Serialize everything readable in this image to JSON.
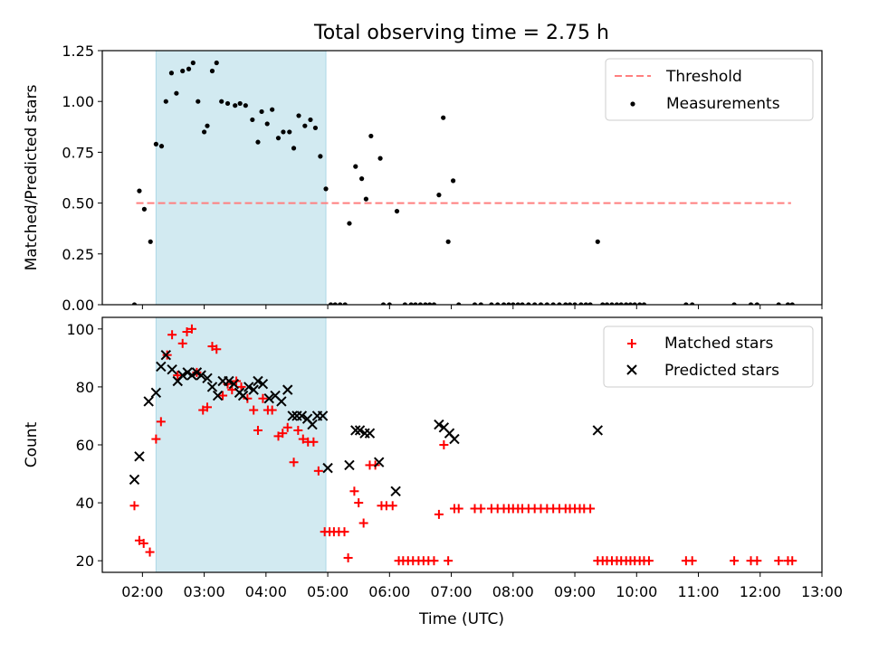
{
  "title": "Total observing time = 2.75 h",
  "xlabel": "Time (UTC)",
  "xticks": [
    "02:00",
    "03:00",
    "04:00",
    "05:00",
    "06:00",
    "07:00",
    "08:00",
    "09:00",
    "10:00",
    "11:00",
    "12:00",
    "13:00"
  ],
  "colors": {
    "threshold": "#ff7f7f",
    "measurements": "#000000",
    "matched": "#ff0000",
    "predicted": "#000000",
    "shade": "#add8e6"
  },
  "chart_data": [
    {
      "type": "scatter",
      "ylabel": "Matched/Predicted stars",
      "xlim": [
        1.35,
        13.0
      ],
      "ylim": [
        0,
        1.25
      ],
      "yticks": [
        "0.00",
        "0.25",
        "0.50",
        "0.75",
        "1.00",
        "1.25"
      ],
      "yticks_values": [
        0,
        0.25,
        0.5,
        0.75,
        1.0,
        1.25
      ],
      "shaded_interval": [
        2.22,
        4.97
      ],
      "legend": {
        "position": "top-right",
        "threshold_label": "Threshold",
        "measurements_label": "Measurements"
      },
      "threshold": {
        "y": 0.5,
        "x": [
          1.9,
          12.5
        ]
      },
      "series": [
        {
          "name": "Measurements",
          "points": [
            [
              1.87,
              0.0
            ],
            [
              1.95,
              0.56
            ],
            [
              2.03,
              0.47
            ],
            [
              2.13,
              0.31
            ],
            [
              2.22,
              0.79
            ],
            [
              2.31,
              0.78
            ],
            [
              2.38,
              1.0
            ],
            [
              2.47,
              1.14
            ],
            [
              2.55,
              1.04
            ],
            [
              2.65,
              1.15
            ],
            [
              2.75,
              1.16
            ],
            [
              2.82,
              1.19
            ],
            [
              2.9,
              1.0
            ],
            [
              3.0,
              0.85
            ],
            [
              3.05,
              0.88
            ],
            [
              3.13,
              1.15
            ],
            [
              3.2,
              1.19
            ],
            [
              3.28,
              1.0
            ],
            [
              3.38,
              0.99
            ],
            [
              3.5,
              0.98
            ],
            [
              3.58,
              0.99
            ],
            [
              3.67,
              0.98
            ],
            [
              3.78,
              0.91
            ],
            [
              3.87,
              0.8
            ],
            [
              3.93,
              0.95
            ],
            [
              4.02,
              0.89
            ],
            [
              4.1,
              0.96
            ],
            [
              4.2,
              0.82
            ],
            [
              4.28,
              0.85
            ],
            [
              4.38,
              0.85
            ],
            [
              4.45,
              0.77
            ],
            [
              4.53,
              0.93
            ],
            [
              4.63,
              0.88
            ],
            [
              4.72,
              0.91
            ],
            [
              4.8,
              0.87
            ],
            [
              4.88,
              0.73
            ],
            [
              4.97,
              0.57
            ],
            [
              5.05,
              0.0
            ],
            [
              5.12,
              0.0
            ],
            [
              5.2,
              0.0
            ],
            [
              5.28,
              0.0
            ],
            [
              5.35,
              0.4
            ],
            [
              5.45,
              0.68
            ],
            [
              5.55,
              0.62
            ],
            [
              5.62,
              0.52
            ],
            [
              5.7,
              0.83
            ],
            [
              5.85,
              0.72
            ],
            [
              5.9,
              0.0
            ],
            [
              6.0,
              0.0
            ],
            [
              6.12,
              0.46
            ],
            [
              6.25,
              0.0
            ],
            [
              6.35,
              0.0
            ],
            [
              6.42,
              0.0
            ],
            [
              6.5,
              0.0
            ],
            [
              6.58,
              0.0
            ],
            [
              6.65,
              0.0
            ],
            [
              6.72,
              0.0
            ],
            [
              6.8,
              0.54
            ],
            [
              6.87,
              0.92
            ],
            [
              6.95,
              0.31
            ],
            [
              7.03,
              0.61
            ],
            [
              7.12,
              0.0
            ],
            [
              7.38,
              0.0
            ],
            [
              7.48,
              0.0
            ],
            [
              7.65,
              0.0
            ],
            [
              7.75,
              0.0
            ],
            [
              7.85,
              0.0
            ],
            [
              7.93,
              0.0
            ],
            [
              8.0,
              0.0
            ],
            [
              8.08,
              0.0
            ],
            [
              8.15,
              0.0
            ],
            [
              8.25,
              0.0
            ],
            [
              8.35,
              0.0
            ],
            [
              8.45,
              0.0
            ],
            [
              8.55,
              0.0
            ],
            [
              8.65,
              0.0
            ],
            [
              8.75,
              0.0
            ],
            [
              8.85,
              0.0
            ],
            [
              8.92,
              0.0
            ],
            [
              9.0,
              0.0
            ],
            [
              9.1,
              0.0
            ],
            [
              9.18,
              0.0
            ],
            [
              9.25,
              0.0
            ],
            [
              9.37,
              0.31
            ],
            [
              9.45,
              0.0
            ],
            [
              9.52,
              0.0
            ],
            [
              9.6,
              0.0
            ],
            [
              9.68,
              0.0
            ],
            [
              9.75,
              0.0
            ],
            [
              9.83,
              0.0
            ],
            [
              9.9,
              0.0
            ],
            [
              9.97,
              0.0
            ],
            [
              10.05,
              0.0
            ],
            [
              10.12,
              0.0
            ],
            [
              10.8,
              0.0
            ],
            [
              10.9,
              0.0
            ],
            [
              11.58,
              0.0
            ],
            [
              11.85,
              0.0
            ],
            [
              11.95,
              0.0
            ],
            [
              12.3,
              0.0
            ],
            [
              12.45,
              0.0
            ],
            [
              12.52,
              0.0
            ]
          ]
        }
      ]
    },
    {
      "type": "scatter",
      "ylabel": "Count",
      "xlim": [
        1.35,
        13.0
      ],
      "ylim": [
        16,
        104
      ],
      "yticks": [
        "20",
        "40",
        "60",
        "80",
        "100"
      ],
      "yticks_values": [
        20,
        40,
        60,
        80,
        100
      ],
      "shaded_interval": [
        2.22,
        4.97
      ],
      "legend": {
        "position": "top-right",
        "matched_label": "Matched stars",
        "predicted_label": "Predicted stars"
      },
      "series": [
        {
          "name": "Matched stars",
          "marker": "plus",
          "points": [
            [
              1.87,
              39
            ],
            [
              1.95,
              27
            ],
            [
              2.02,
              26
            ],
            [
              2.12,
              23
            ],
            [
              2.22,
              62
            ],
            [
              2.3,
              68
            ],
            [
              2.4,
              91
            ],
            [
              2.48,
              98
            ],
            [
              2.57,
              84
            ],
            [
              2.65,
              95
            ],
            [
              2.72,
              99
            ],
            [
              2.8,
              100
            ],
            [
              2.88,
              85
            ],
            [
              2.98,
              72
            ],
            [
              3.05,
              73
            ],
            [
              3.13,
              94
            ],
            [
              3.2,
              93
            ],
            [
              3.3,
              77
            ],
            [
              3.38,
              81
            ],
            [
              3.45,
              79
            ],
            [
              3.52,
              82
            ],
            [
              3.6,
              80
            ],
            [
              3.7,
              76
            ],
            [
              3.8,
              72
            ],
            [
              3.87,
              65
            ],
            [
              3.95,
              76
            ],
            [
              4.03,
              72
            ],
            [
              4.1,
              72
            ],
            [
              4.2,
              63
            ],
            [
              4.27,
              64
            ],
            [
              4.35,
              66
            ],
            [
              4.45,
              54
            ],
            [
              4.52,
              65
            ],
            [
              4.6,
              62
            ],
            [
              4.68,
              61
            ],
            [
              4.77,
              61
            ],
            [
              4.85,
              51
            ],
            [
              4.95,
              30
            ],
            [
              5.03,
              30
            ],
            [
              5.1,
              30
            ],
            [
              5.18,
              30
            ],
            [
              5.27,
              30
            ],
            [
              5.33,
              21
            ],
            [
              5.43,
              44
            ],
            [
              5.5,
              40
            ],
            [
              5.58,
              33
            ],
            [
              5.68,
              53
            ],
            [
              5.77,
              53
            ],
            [
              5.87,
              39
            ],
            [
              5.95,
              39
            ],
            [
              6.05,
              39
            ],
            [
              6.15,
              20
            ],
            [
              6.22,
              20
            ],
            [
              6.3,
              20
            ],
            [
              6.38,
              20
            ],
            [
              6.47,
              20
            ],
            [
              6.55,
              20
            ],
            [
              6.63,
              20
            ],
            [
              6.72,
              20
            ],
            [
              6.8,
              36
            ],
            [
              6.88,
              60
            ],
            [
              6.95,
              20
            ],
            [
              7.05,
              38
            ],
            [
              7.12,
              38
            ],
            [
              7.38,
              38
            ],
            [
              7.48,
              38
            ],
            [
              7.65,
              38
            ],
            [
              7.75,
              38
            ],
            [
              7.85,
              38
            ],
            [
              7.93,
              38
            ],
            [
              8.0,
              38
            ],
            [
              8.08,
              38
            ],
            [
              8.15,
              38
            ],
            [
              8.25,
              38
            ],
            [
              8.35,
              38
            ],
            [
              8.45,
              38
            ],
            [
              8.55,
              38
            ],
            [
              8.65,
              38
            ],
            [
              8.75,
              38
            ],
            [
              8.85,
              38
            ],
            [
              8.92,
              38
            ],
            [
              9.0,
              38
            ],
            [
              9.08,
              38
            ],
            [
              9.15,
              38
            ],
            [
              9.25,
              38
            ],
            [
              9.37,
              20
            ],
            [
              9.45,
              20
            ],
            [
              9.52,
              20
            ],
            [
              9.6,
              20
            ],
            [
              9.68,
              20
            ],
            [
              9.75,
              20
            ],
            [
              9.83,
              20
            ],
            [
              9.9,
              20
            ],
            [
              9.97,
              20
            ],
            [
              10.05,
              20
            ],
            [
              10.12,
              20
            ],
            [
              10.2,
              20
            ],
            [
              10.8,
              20
            ],
            [
              10.9,
              20
            ],
            [
              11.58,
              20
            ],
            [
              11.85,
              20
            ],
            [
              11.95,
              20
            ],
            [
              12.3,
              20
            ],
            [
              12.45,
              20
            ],
            [
              12.52,
              20
            ]
          ]
        },
        {
          "name": "Predicted stars",
          "marker": "x",
          "points": [
            [
              1.87,
              48
            ],
            [
              1.95,
              56
            ],
            [
              2.1,
              75
            ],
            [
              2.22,
              78
            ],
            [
              2.3,
              87
            ],
            [
              2.38,
              91
            ],
            [
              2.48,
              86
            ],
            [
              2.57,
              82
            ],
            [
              2.65,
              84
            ],
            [
              2.73,
              85
            ],
            [
              2.8,
              84
            ],
            [
              2.88,
              85
            ],
            [
              2.95,
              84
            ],
            [
              3.05,
              83
            ],
            [
              3.13,
              80
            ],
            [
              3.22,
              77
            ],
            [
              3.3,
              82
            ],
            [
              3.4,
              82
            ],
            [
              3.48,
              81
            ],
            [
              3.57,
              78
            ],
            [
              3.63,
              77
            ],
            [
              3.72,
              80
            ],
            [
              3.8,
              79
            ],
            [
              3.87,
              82
            ],
            [
              3.95,
              81
            ],
            [
              4.05,
              76
            ],
            [
              4.15,
              77
            ],
            [
              4.25,
              75
            ],
            [
              4.35,
              79
            ],
            [
              4.43,
              70
            ],
            [
              4.5,
              70
            ],
            [
              4.58,
              70
            ],
            [
              4.67,
              69
            ],
            [
              4.75,
              67
            ],
            [
              4.83,
              70
            ],
            [
              4.92,
              70
            ],
            [
              5.0,
              52
            ],
            [
              5.35,
              53
            ],
            [
              5.45,
              65
            ],
            [
              5.52,
              65
            ],
            [
              5.6,
              64
            ],
            [
              5.68,
              64
            ],
            [
              5.83,
              54
            ],
            [
              6.1,
              44
            ],
            [
              6.8,
              67
            ],
            [
              6.88,
              66
            ],
            [
              6.97,
              64
            ],
            [
              7.05,
              62
            ],
            [
              9.37,
              65
            ]
          ]
        }
      ]
    }
  ]
}
